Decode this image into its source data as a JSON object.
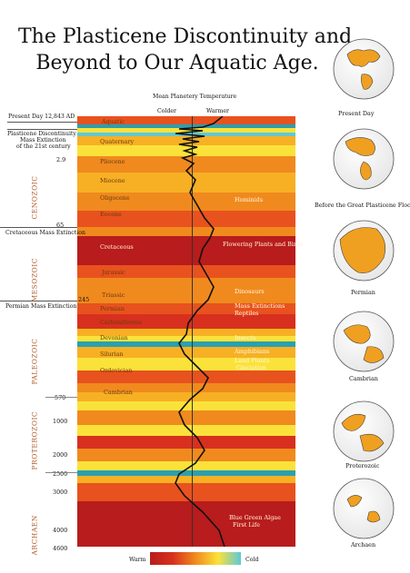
{
  "title": {
    "line1": "The Plasticene Discontinuity and",
    "line2": "Beyond to Our Aquatic Age."
  },
  "header": {
    "axis_title": "Mean Planetery Temperature",
    "colder": "Colder",
    "warmer": "Warmer"
  },
  "left_labels": {
    "present_day": "Present Day  12,843 AD",
    "discontinuity_1": "Plasticene Discontinuity",
    "discontinuity_2": "Mass Extinction",
    "discontinuity_3": "of the 21st century",
    "cretaceous_extinction": "Cretaceous Mass Extinction",
    "permian_extinction": "Permian Mass Extinction"
  },
  "eras": [
    "CENOZOIC",
    "MESOZOIC",
    "PALEOZOIC",
    "PROTEROZOIC",
    "ARCHAEN"
  ],
  "ticks": [
    "2.9",
    "65",
    "245",
    "570",
    "1000",
    "2000",
    "2500",
    "3000",
    "4000",
    "4600"
  ],
  "periods": [
    "Aquatic",
    "Quaternary",
    "Pliocene",
    "Miocene",
    "Oligocene",
    "Eocene",
    "Cretaceous",
    "Jurassic",
    "Triassic",
    "Permian",
    "Carboniferous",
    "Devonian",
    "Silurian",
    "Ordovician",
    "Cambrian"
  ],
  "events": {
    "hominids": "Hominids",
    "flowering": "Flowering Plants and Birds",
    "dinosaurs": "Dinosaurs",
    "mass_ext": "Mass Extinctions",
    "reptiles": "Reptiles",
    "insects": "Insects",
    "amphibians": "Amphibians",
    "land_plants": "Land Plants",
    "glaciation": "Glaciation",
    "algae_1": "Blue Green Algae",
    "algae_2": "First Life"
  },
  "globes": [
    "Present Day",
    "Before the Great Plasticene Flood",
    "Permian",
    "Cambrian",
    "Proterozoic",
    "Archaen"
  ],
  "legend": {
    "warm": "Warm",
    "cold": "Cold"
  },
  "colors": {
    "deep_red": "#b81c1c",
    "red": "#d8301e",
    "orange_red": "#e8521e",
    "orange": "#f08a1e",
    "light_orange": "#f7b024",
    "yellow": "#fbe23a",
    "cyan": "#5ec8d8",
    "teal": "#2aa0b0"
  }
}
